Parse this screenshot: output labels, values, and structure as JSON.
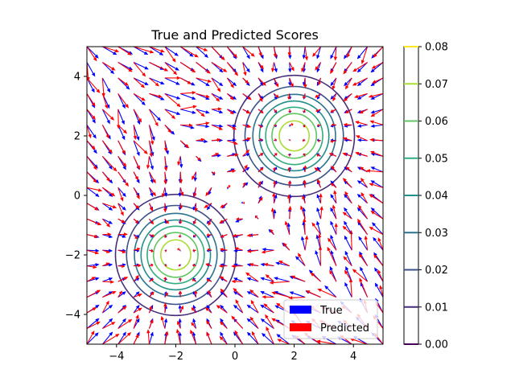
{
  "chart_data": {
    "type": "quiver-contour",
    "title": "True and Predicted Scores",
    "xlim": [
      -5,
      5
    ],
    "ylim": [
      -5,
      5
    ],
    "x_ticks": [
      -4,
      -2,
      0,
      2,
      4
    ],
    "y_ticks": [
      -4,
      -2,
      0,
      2,
      4
    ],
    "grid": false,
    "mixture": {
      "components": [
        {
          "mean": [
            -2,
            -2
          ],
          "std": 1,
          "weight": 0.5
        },
        {
          "mean": [
            2,
            2
          ],
          "std": 1,
          "weight": 0.5
        }
      ]
    },
    "contour_levels": [
      0.01,
      0.02,
      0.03,
      0.04,
      0.05,
      0.06,
      0.07
    ],
    "quiver": {
      "grid_range": [
        -5,
        5
      ],
      "grid_count": 20,
      "series": [
        {
          "name": "True",
          "color": "#0000ff"
        },
        {
          "name": "Predicted",
          "color": "#ff0000"
        }
      ]
    },
    "legend": {
      "position": "lower-right",
      "entries": [
        "True",
        "Predicted"
      ]
    },
    "colorbar": {
      "range": [
        0,
        0.08
      ],
      "ticks": [
        "0.00",
        "0.01",
        "0.02",
        "0.03",
        "0.04",
        "0.05",
        "0.06",
        "0.07",
        "0.08"
      ],
      "colors": [
        "#440154",
        "#46337e",
        "#365c8d",
        "#277f8e",
        "#1fa187",
        "#4ac16d",
        "#a0da39",
        "#fde725"
      ]
    }
  }
}
